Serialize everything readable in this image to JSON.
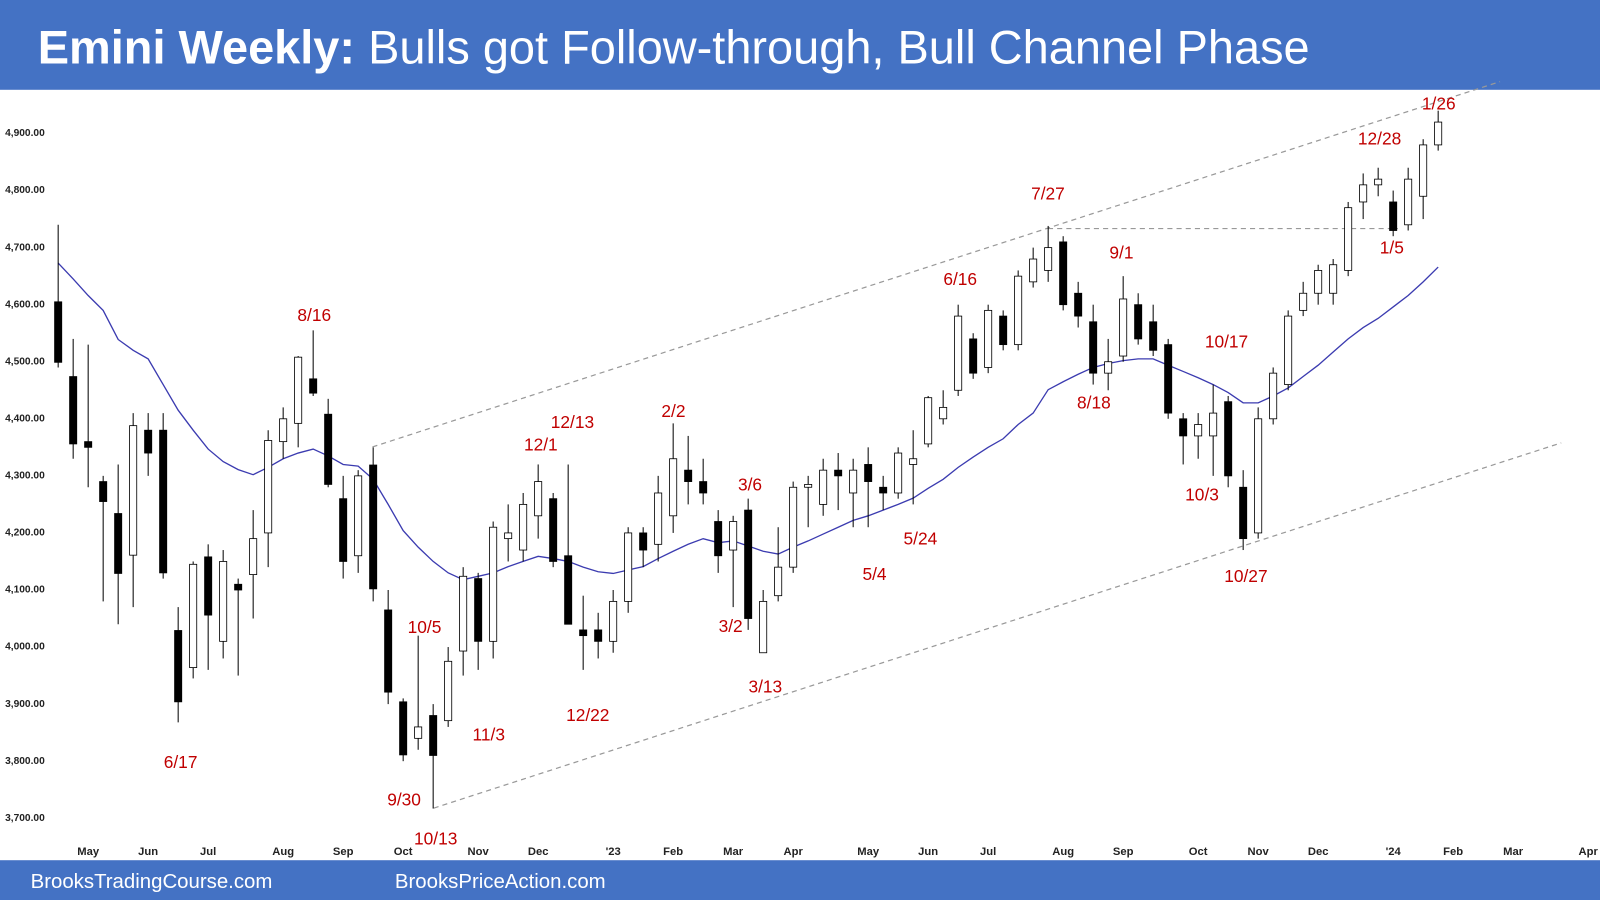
{
  "chart_data": {
    "type": "candlestick",
    "title_lead": "Emini Weekly:",
    "title": "Bulls got Follow-through, Bull Channel Phase",
    "categories": [
      null,
      null,
      "May",
      null,
      null,
      null,
      "Jun",
      null,
      null,
      null,
      "Jul",
      null,
      null,
      null,
      null,
      "Aug",
      null,
      null,
      null,
      "Sep",
      null,
      null,
      null,
      "Oct",
      null,
      null,
      null,
      null,
      "Nov",
      null,
      null,
      null,
      "Dec",
      null,
      null,
      null,
      null,
      "'23",
      null,
      null,
      null,
      "Feb",
      null,
      null,
      null,
      "Mar",
      null,
      null,
      null,
      "Apr",
      null,
      null,
      null,
      null,
      "May",
      null,
      null,
      null,
      "Jun",
      null,
      null,
      null,
      "Jul",
      null,
      null,
      null,
      null,
      "Aug",
      null,
      null,
      null,
      "Sep",
      null,
      null,
      null,
      null,
      "Oct",
      null,
      null,
      null,
      "Nov",
      null,
      null,
      null,
      "Dec",
      null,
      null,
      null,
      null,
      "'24",
      null,
      null,
      null,
      "Feb",
      null,
      null,
      null,
      "Mar",
      null,
      null,
      null,
      null,
      "Apr"
    ],
    "open": [
      4605,
      4474,
      4360,
      4290,
      4234,
      4161,
      4380,
      4380,
      4029,
      3964,
      4158,
      4010,
      4110,
      4127,
      4200,
      4360,
      4392,
      4470,
      4408,
      4260,
      4160,
      4319,
      4065,
      3904,
      3840,
      3880,
      3871,
      3993,
      4120,
      4010,
      4190,
      4170,
      4230,
      4260,
      4160,
      4030,
      4030,
      4010,
      4080,
      4200,
      4180,
      4230,
      4310,
      4290,
      4220,
      4170,
      4240,
      3990,
      4090,
      4140,
      4280,
      4250,
      4310,
      4270,
      4320,
      4280,
      4270,
      4320,
      4356,
      4400,
      4450,
      4540,
      4490,
      4580,
      4530,
      4640,
      4660,
      4710,
      4620,
      4570,
      4480,
      4510,
      4600,
      4570,
      4530,
      4400,
      4370,
      4370,
      4430,
      4280,
      4200,
      4400,
      4460,
      4590,
      4620,
      4620,
      4660,
      4780,
      4810,
      4780,
      4740,
      4790,
      4880,
      null,
      null,
      null,
      null,
      null,
      null,
      null,
      null,
      null,
      null
    ],
    "high": [
      4740,
      4540,
      4530,
      4300,
      4320,
      4410,
      4410,
      4410,
      4070,
      4150,
      4180,
      4170,
      4120,
      4240,
      4380,
      4420,
      4510,
      4555,
      4435,
      4300,
      4310,
      4350,
      4100,
      3910,
      4020,
      3900,
      4000,
      4140,
      4130,
      4220,
      4250,
      4270,
      4320,
      4270,
      4320,
      4090,
      4060,
      4100,
      4210,
      4210,
      4300,
      4392,
      4370,
      4330,
      4240,
      4230,
      4260,
      4100,
      4210,
      4290,
      4300,
      4330,
      4340,
      4330,
      4350,
      4300,
      4350,
      4380,
      4440,
      4450,
      4600,
      4550,
      4600,
      4590,
      4660,
      4700,
      4738,
      4720,
      4640,
      4600,
      4540,
      4650,
      4620,
      4600,
      4540,
      4410,
      4410,
      4460,
      4440,
      4310,
      4420,
      4490,
      4590,
      4640,
      4670,
      4680,
      4780,
      4830,
      4840,
      4800,
      4840,
      4890,
      4940,
      null,
      null,
      null,
      null,
      null,
      null,
      null,
      null,
      null,
      null
    ],
    "low": [
      4490,
      4330,
      4280,
      4080,
      4040,
      4070,
      4300,
      4120,
      3868,
      3945,
      3960,
      3980,
      3950,
      4050,
      4140,
      4330,
      4350,
      4440,
      4280,
      4120,
      4130,
      4080,
      3900,
      3800,
      3820,
      3717,
      3860,
      3950,
      3960,
      3980,
      4150,
      4150,
      4190,
      4140,
      4040,
      3960,
      3980,
      3990,
      4060,
      4140,
      4150,
      4200,
      4250,
      4250,
      4130,
      4070,
      4030,
      3990,
      4080,
      4130,
      4210,
      4230,
      4240,
      4210,
      4210,
      4240,
      4260,
      4250,
      4350,
      4390,
      4440,
      4470,
      4480,
      4520,
      4520,
      4630,
      4640,
      4590,
      4560,
      4460,
      4450,
      4500,
      4530,
      4510,
      4400,
      4320,
      4330,
      4300,
      4280,
      4170,
      4190,
      4390,
      4450,
      4580,
      4600,
      4600,
      4650,
      4750,
      4790,
      4720,
      4730,
      4750,
      4870,
      null,
      null,
      null,
      null,
      null,
      null,
      null,
      null,
      null,
      null
    ],
    "close": [
      4499,
      4356,
      4350,
      4255,
      4129,
      4388,
      4340,
      4130,
      3904,
      4145,
      4056,
      4150,
      4100,
      4190,
      4362,
      4400,
      4508,
      4445,
      4285,
      4150,
      4300,
      4102,
      3921,
      3811,
      3860,
      3810,
      3975,
      4124,
      4010,
      4210,
      4200,
      4250,
      4290,
      4150,
      4040,
      4020,
      4010,
      4080,
      4200,
      4170,
      4270,
      4330,
      4290,
      4270,
      4160,
      4220,
      4050,
      4080,
      4140,
      4280,
      4285,
      4310,
      4300,
      4310,
      4290,
      4270,
      4340,
      4330,
      4437,
      4420,
      4580,
      4480,
      4590,
      4530,
      4650,
      4680,
      4700,
      4600,
      4580,
      4480,
      4500,
      4610,
      4540,
      4520,
      4410,
      4370,
      4390,
      4410,
      4300,
      4190,
      4400,
      4480,
      4580,
      4620,
      4660,
      4670,
      4770,
      4810,
      4820,
      4730,
      4820,
      4880,
      4920,
      null,
      null,
      null,
      null,
      null,
      null,
      null,
      null,
      null,
      null
    ],
    "up_color": "#ffffff",
    "down_color": "#000000",
    "ema": {
      "color": "#3b3bb0",
      "values": [
        4673,
        4645,
        4616,
        4590,
        4539,
        4520,
        4505,
        4460,
        4415,
        4380,
        4347,
        4325,
        4311,
        4302,
        4315,
        4330,
        4340,
        4347,
        4335,
        4320,
        4317,
        4294,
        4250,
        4204,
        4175,
        4150,
        4130,
        4118,
        4124,
        4130,
        4141,
        4150,
        4159,
        4155,
        4150,
        4140,
        4132,
        4129,
        4135,
        4141,
        4155,
        4168,
        4180,
        4190,
        4183,
        4186,
        4177,
        4168,
        4163,
        4175,
        4186,
        4198,
        4210,
        4222,
        4230,
        4240,
        4250,
        4261,
        4278,
        4294,
        4315,
        4333,
        4350,
        4365,
        4390,
        4410,
        4451,
        4465,
        4478,
        4490,
        4497,
        4502,
        4505,
        4505,
        4494,
        4483,
        4472,
        4460,
        4446,
        4428,
        4428,
        4440,
        4454,
        4474,
        4494,
        4517,
        4540,
        4560,
        4576,
        4596,
        4616,
        4640,
        4666,
        null,
        null,
        null,
        null,
        null,
        null,
        null,
        null,
        null,
        null
      ]
    },
    "ylim": [
      3664,
      4973
    ],
    "yticks": [
      {
        "value": 3700,
        "label": "3,700.00"
      },
      {
        "value": 3800,
        "label": "3,800.00"
      },
      {
        "value": 3900,
        "label": "3,900.00"
      },
      {
        "value": 4000,
        "label": "4,000.00"
      },
      {
        "value": 4100,
        "label": "4,100.00"
      },
      {
        "value": 4200,
        "label": "4,200.00"
      },
      {
        "value": 4300,
        "label": "4,300.00"
      },
      {
        "value": 4400,
        "label": "4,400.00"
      },
      {
        "value": 4500,
        "label": "4,500.00"
      },
      {
        "value": 4600,
        "label": "4,600.00"
      },
      {
        "value": 4700,
        "label": "4,700.00"
      },
      {
        "value": 4800,
        "label": "4,800.00"
      },
      {
        "value": 4900,
        "label": "4,900.00"
      }
    ],
    "annotations": [
      "8/16",
      "6/17",
      "10/5",
      "9/30",
      "10/13",
      "11/3",
      "12/1",
      "12/13",
      "12/22",
      "2/2",
      "3/6",
      "3/2",
      "3/13",
      "5/4",
      "5/24",
      "6/16",
      "7/27",
      "9/1",
      "8/18",
      "10/17",
      "10/3",
      "10/27",
      "12/28",
      "1/5",
      "1/26"
    ]
  },
  "footer": [
    "BrooksTradingCourse.com",
    "BrooksPriceAction.com"
  ]
}
